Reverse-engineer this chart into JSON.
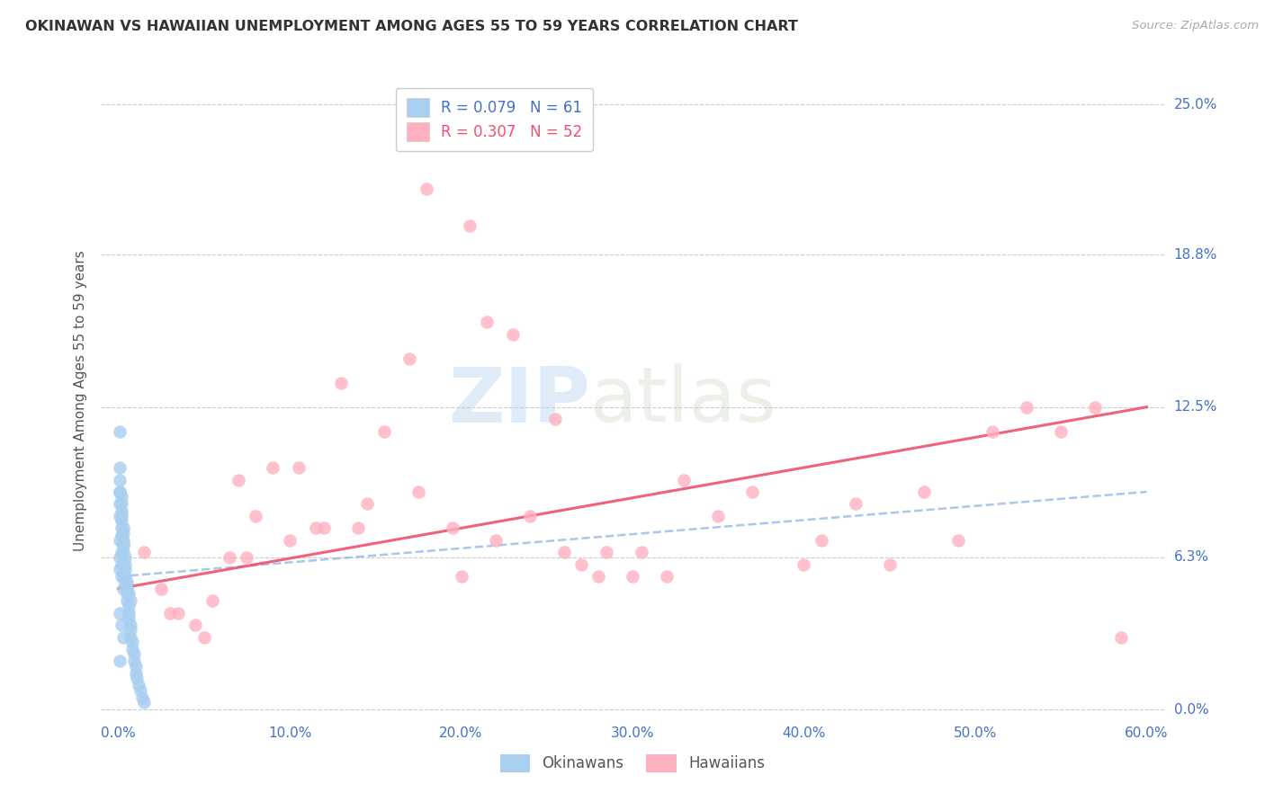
{
  "title": "OKINAWAN VS HAWAIIAN UNEMPLOYMENT AMONG AGES 55 TO 59 YEARS CORRELATION CHART",
  "source": "Source: ZipAtlas.com",
  "ylabel": "Unemployment Among Ages 55 to 59 years",
  "ytick_labels": [
    "0.0%",
    "6.3%",
    "12.5%",
    "18.8%",
    "25.0%"
  ],
  "ytick_values": [
    0.0,
    6.3,
    12.5,
    18.8,
    25.0
  ],
  "xtick_labels": [
    "0.0%",
    "10.0%",
    "20.0%",
    "30.0%",
    "40.0%",
    "50.0%",
    "60.0%"
  ],
  "xtick_values": [
    0.0,
    10.0,
    20.0,
    30.0,
    40.0,
    50.0,
    60.0
  ],
  "xlim": [
    -1.0,
    61.0
  ],
  "ylim": [
    -0.5,
    26.0
  ],
  "okinawan_R": 0.079,
  "okinawan_N": 61,
  "hawaiian_R": 0.307,
  "hawaiian_N": 52,
  "okinawan_color": "#A8CEF0",
  "hawaiian_color": "#FFB0C0",
  "okinawan_line_color": "#8EB4E3",
  "hawaiian_line_color": "#F0506E",
  "legend_okinawan_label": "Okinawans",
  "legend_hawaiian_label": "Hawaiians",
  "watermark_zip": "ZIP",
  "watermark_atlas": "atlas",
  "ok_x": [
    0.1,
    0.1,
    0.1,
    0.1,
    0.1,
    0.2,
    0.2,
    0.2,
    0.2,
    0.2,
    0.3,
    0.3,
    0.3,
    0.3,
    0.3,
    0.4,
    0.4,
    0.4,
    0.4,
    0.5,
    0.5,
    0.5,
    0.5,
    0.6,
    0.6,
    0.6,
    0.7,
    0.7,
    0.7,
    0.8,
    0.8,
    0.9,
    0.9,
    1.0,
    1.0,
    1.1,
    1.2,
    1.3,
    1.4,
    1.5,
    0.1,
    0.1,
    0.2,
    0.2,
    0.3,
    0.3,
    0.4,
    0.5,
    0.6,
    0.7,
    0.1,
    0.2,
    0.1,
    0.2,
    0.3,
    0.1,
    0.1,
    0.2,
    0.3,
    0.2,
    0.1
  ],
  "ok_y": [
    11.5,
    10.0,
    9.5,
    9.0,
    8.5,
    8.8,
    8.5,
    8.2,
    8.0,
    7.8,
    7.5,
    7.3,
    7.0,
    6.8,
    6.5,
    6.3,
    6.0,
    5.8,
    5.5,
    5.3,
    5.0,
    4.8,
    4.5,
    4.3,
    4.0,
    3.8,
    3.5,
    3.3,
    3.0,
    2.8,
    2.5,
    2.3,
    2.0,
    1.8,
    1.5,
    1.3,
    1.0,
    0.8,
    0.5,
    0.3,
    6.3,
    5.8,
    6.0,
    5.5,
    5.5,
    5.0,
    5.2,
    5.0,
    4.8,
    4.5,
    7.0,
    6.5,
    4.0,
    3.5,
    3.0,
    8.0,
    9.0,
    7.5,
    6.8,
    7.2,
    2.0
  ],
  "hw_x": [
    1.5,
    2.5,
    3.0,
    4.5,
    5.5,
    6.5,
    7.0,
    8.0,
    9.0,
    10.5,
    11.5,
    13.0,
    14.0,
    15.5,
    17.0,
    18.0,
    19.5,
    20.5,
    21.5,
    23.0,
    25.5,
    27.0,
    28.5,
    30.0,
    30.5,
    33.0,
    35.0,
    37.0,
    40.0,
    41.0,
    43.0,
    45.0,
    47.0,
    49.0,
    51.0,
    53.0,
    55.0,
    57.0,
    58.5,
    3.5,
    5.0,
    7.5,
    10.0,
    12.0,
    14.5,
    17.5,
    20.0,
    22.0,
    24.0,
    26.0,
    28.0,
    32.0
  ],
  "hw_y": [
    6.5,
    5.0,
    4.0,
    3.5,
    4.5,
    6.3,
    9.5,
    8.0,
    10.0,
    10.0,
    7.5,
    13.5,
    7.5,
    11.5,
    14.5,
    21.5,
    7.5,
    20.0,
    16.0,
    15.5,
    12.0,
    6.0,
    6.5,
    5.5,
    6.5,
    9.5,
    8.0,
    9.0,
    6.0,
    7.0,
    8.5,
    6.0,
    9.0,
    7.0,
    11.5,
    12.5,
    11.5,
    12.5,
    3.0,
    4.0,
    3.0,
    6.3,
    7.0,
    7.5,
    8.5,
    9.0,
    5.5,
    7.0,
    8.0,
    6.5,
    5.5,
    5.5
  ],
  "ok_trend_x": [
    0.0,
    60.0
  ],
  "ok_trend_y": [
    5.5,
    9.0
  ],
  "hw_trend_x": [
    0.0,
    60.0
  ],
  "hw_trend_y": [
    5.0,
    12.5
  ]
}
